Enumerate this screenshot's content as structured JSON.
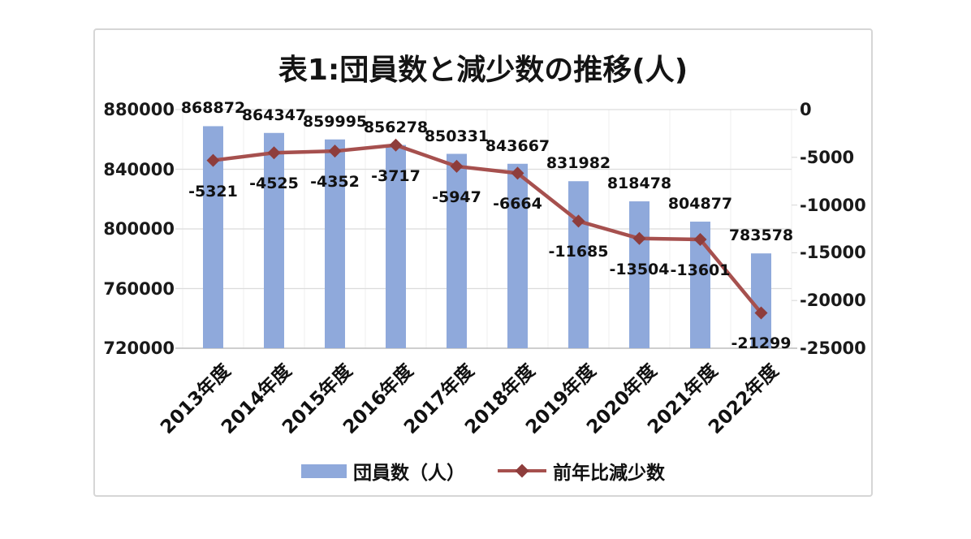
{
  "chart_data": {
    "type": "combo-bar-line",
    "title": "表1:団員数と減少数の推移(人)",
    "categories": [
      "2013年度",
      "2014年度",
      "2015年度",
      "2016年度",
      "2017年度",
      "2018年度",
      "2019年度",
      "2020年度",
      "2021年度",
      "2022年度"
    ],
    "series": [
      {
        "name": "団員数（人）",
        "chart_type": "bar",
        "axis": "left",
        "values": [
          868872,
          864347,
          859995,
          856278,
          850331,
          843667,
          831982,
          818478,
          804877,
          783578
        ]
      },
      {
        "name": "前年比減少数",
        "chart_type": "line",
        "axis": "right",
        "values": [
          -5321,
          -4525,
          -4352,
          -3717,
          -5947,
          -6664,
          -11685,
          -13504,
          -13601,
          -21299
        ]
      }
    ],
    "left_axis": {
      "min": 720000,
      "max": 880000,
      "ticks": [
        880000,
        840000,
        800000,
        760000,
        720000
      ]
    },
    "right_axis": {
      "min": -25000,
      "max": 0,
      "ticks": [
        0,
        -5000,
        -10000,
        -15000,
        -20000,
        -25000
      ]
    },
    "grid": true,
    "data_labels": true,
    "legend_position": "bottom"
  },
  "colors": {
    "bar": "#8FA9DB",
    "line": "#A6504E",
    "marker": "#8E3D3C",
    "grid": "#DCDCDC",
    "grid_vertical": "#EFEFEF",
    "axis_line": "#BDBDBD",
    "text": "#1A1A1A",
    "frame_border": "#D6D6D6"
  }
}
